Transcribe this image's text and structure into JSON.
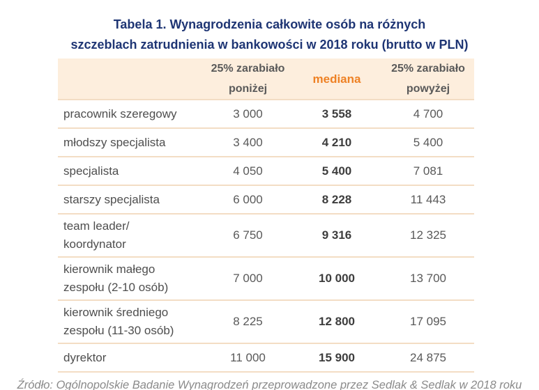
{
  "title": {
    "line1": "Tabela 1. Wynagrodzenia całkowite osób na różnych",
    "line2": "szczeblach zatrudnienia w bankowości w 2018 roku (brutto w PLN)"
  },
  "table": {
    "headers": {
      "below": "25% zarabiało\nponiżej",
      "median": "mediana",
      "above": "25% zarabiało\npowyżej"
    },
    "rows": [
      {
        "label": "pracownik szeregowy",
        "below": "3 000",
        "median": "3 558",
        "above": "4 700"
      },
      {
        "label": "młodszy specjalista",
        "below": "3 400",
        "median": "4 210",
        "above": "5 400"
      },
      {
        "label": "specjalista",
        "below": "4 050",
        "median": "5 400",
        "above": "7 081"
      },
      {
        "label": "starszy specjalista",
        "below": "6 000",
        "median": "8 228",
        "above": "11 443"
      },
      {
        "label": "team leader/\nkoordynator",
        "below": "6 750",
        "median": "9 316",
        "above": "12 325"
      },
      {
        "label": "kierownik małego\nzespołu (2-10 osób)",
        "below": "7 000",
        "median": "10 000",
        "above": "13 700"
      },
      {
        "label": "kierownik średniego\nzespołu (11-30 osób)",
        "below": "8 225",
        "median": "12 800",
        "above": "17 095"
      },
      {
        "label": "dyrektor",
        "below": "11 000",
        "median": "15 900",
        "above": "24 875"
      }
    ]
  },
  "footer": {
    "source": "Źródło: Ogólnopolskie Badanie Wynagrodzeń przeprowadzone przez Sedlak & Sedlak w 2018 roku"
  },
  "colors": {
    "title_navy": "#1e3574",
    "median_orange": "#ee8124",
    "header_bg": "#fdeedd",
    "divider": "#f3ddc4",
    "body_text": "#4e4e4e",
    "footer_gray": "#8a8a8a"
  }
}
